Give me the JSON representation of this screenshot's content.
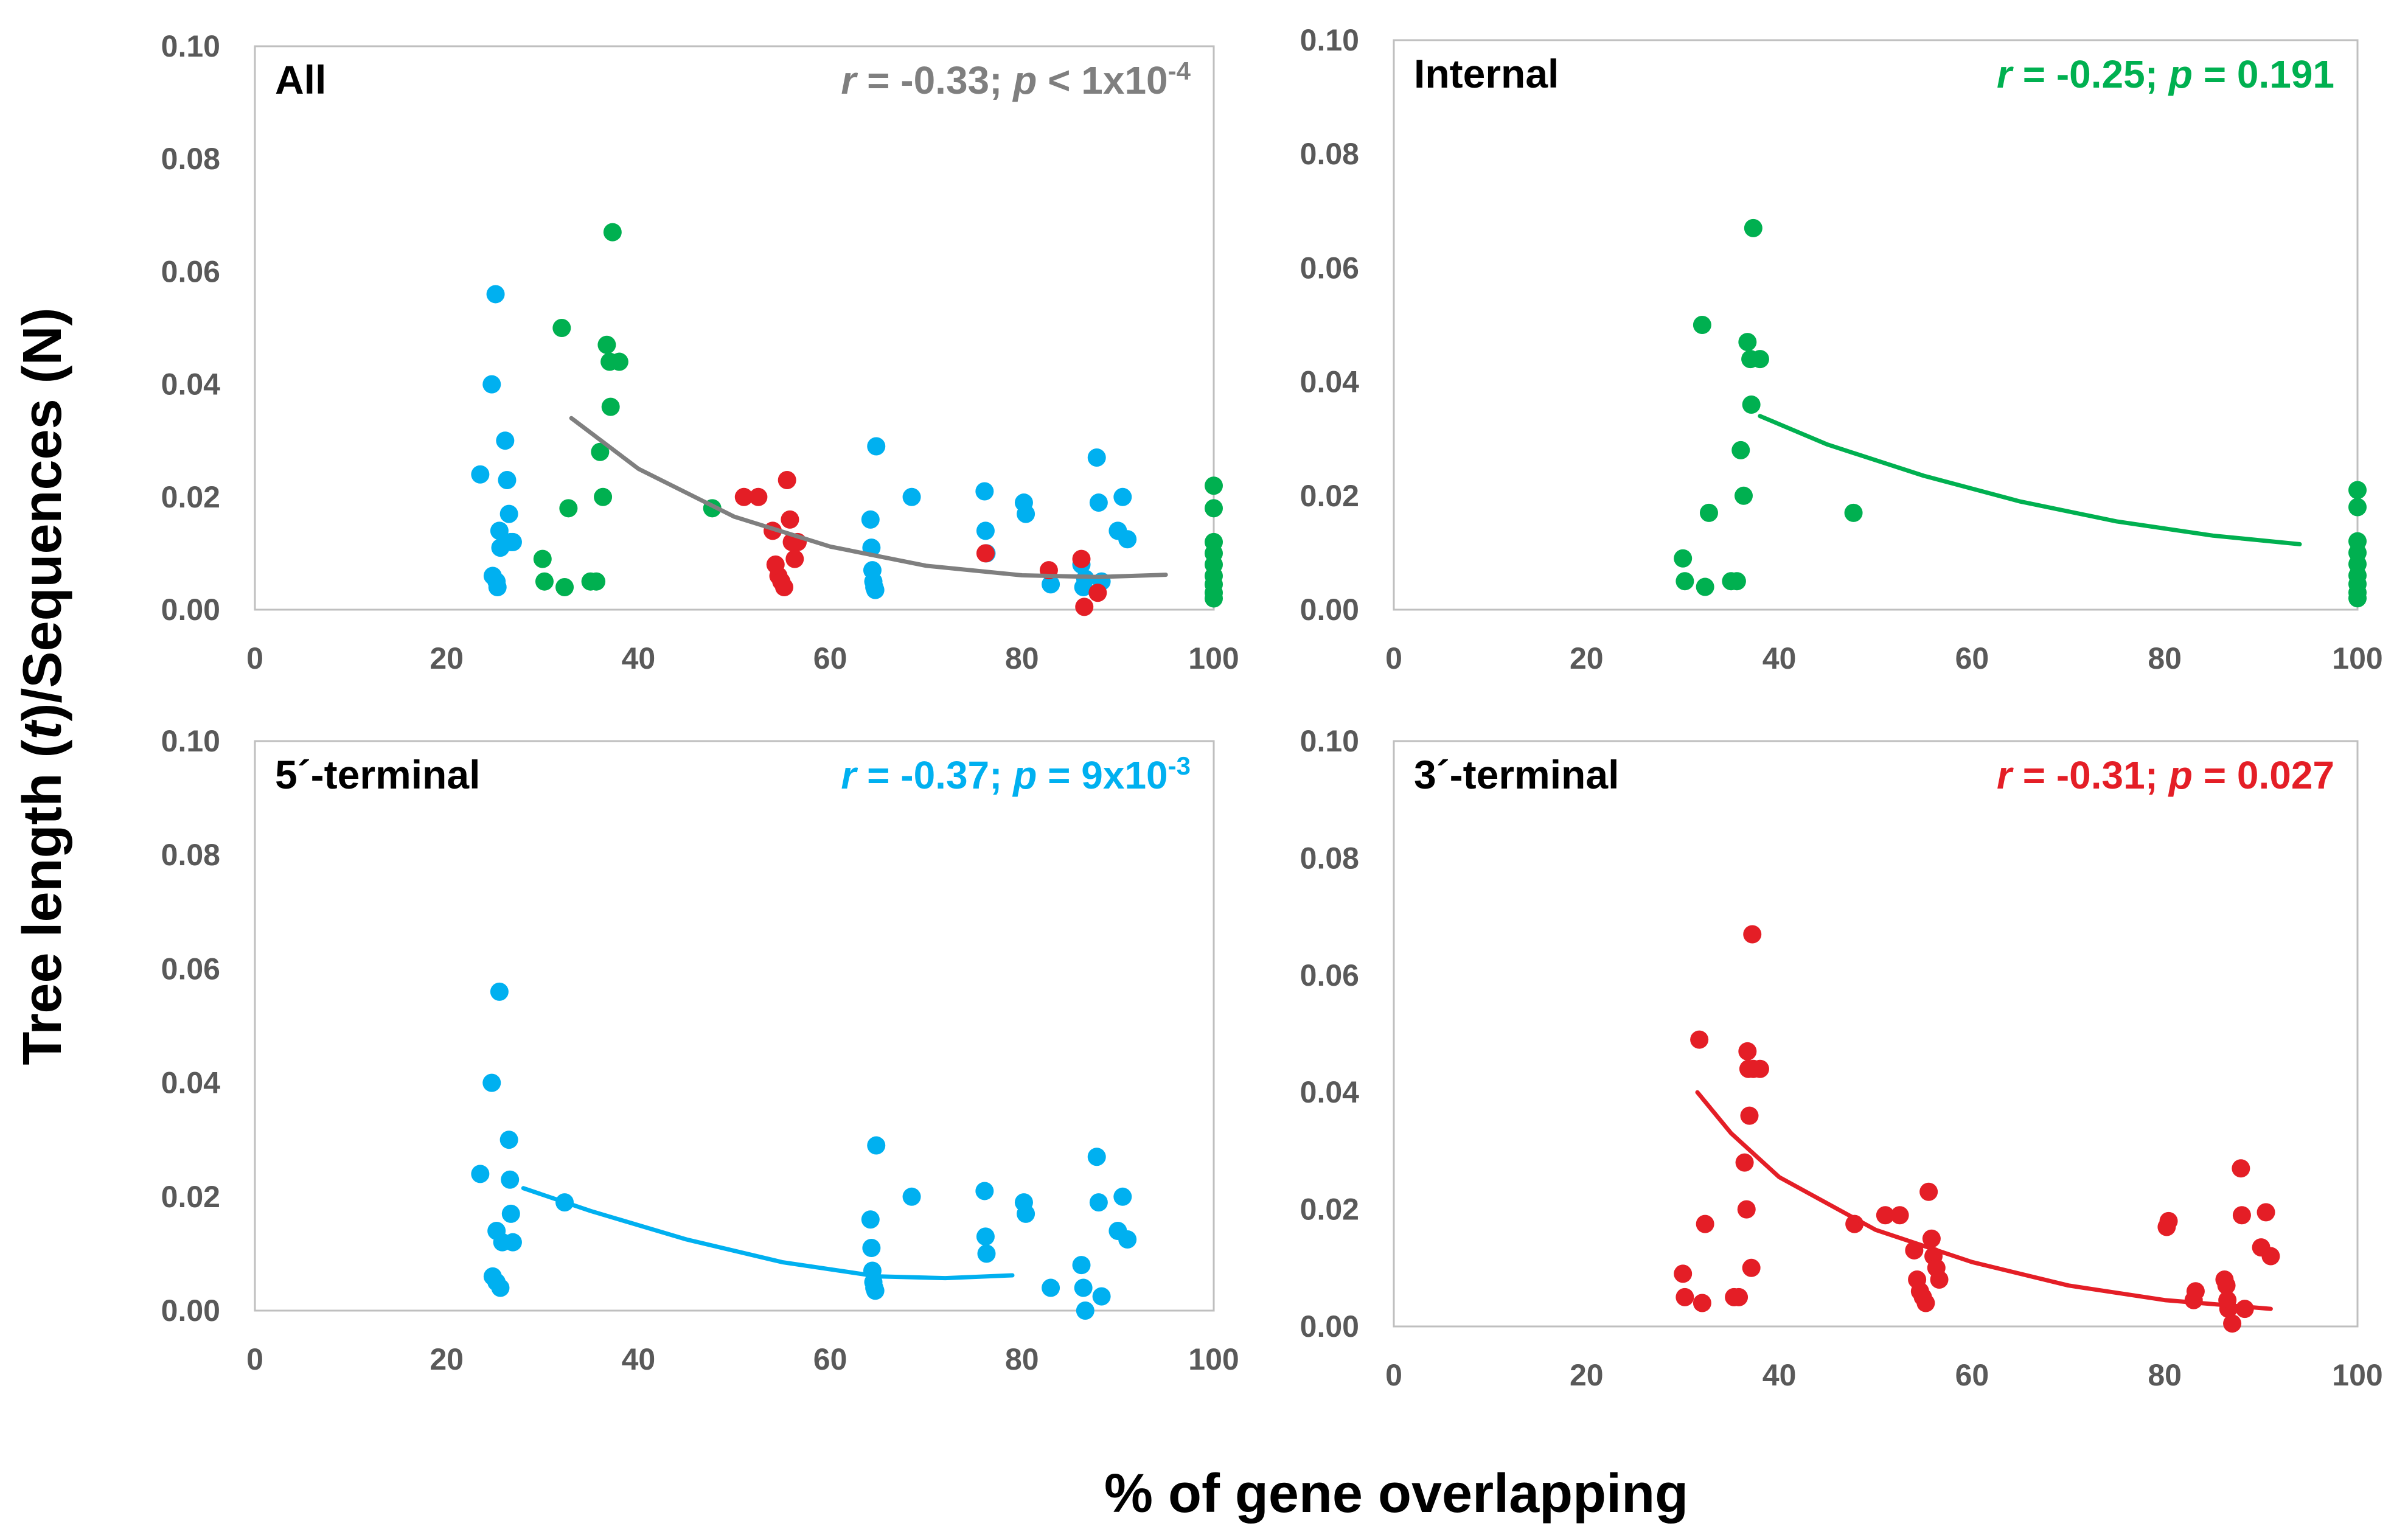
{
  "figure": {
    "ylabel_prefix": "Tree length (",
    "ylabel_italic": "t",
    "ylabel_suffix": ")/Sequences (N)",
    "xlabel": "% of gene overlapping"
  },
  "colors": {
    "all": "#7f7f7f",
    "internal": "#00b050",
    "five_prime": "#00b0f0",
    "three_prime": "#e41e26",
    "frame": "#bfbfbf",
    "tick_text": "#595959"
  },
  "chart_data": [
    {
      "type": "scatter",
      "title": "All",
      "stat": {
        "r_label": "r",
        "r_text": " = -0.33; ",
        "p_label": "p",
        "p_text": " < 1x10",
        "p_exp": "-4"
      },
      "stat_color": "#7f7f7f",
      "xlim": [
        0,
        100
      ],
      "ylim": [
        0,
        0.1
      ],
      "x_ticks": [
        "0",
        "20",
        "40",
        "60",
        "80",
        "100"
      ],
      "y_ticks": [
        "0.00",
        "0.02",
        "0.04",
        "0.06",
        "0.08",
        "0.10"
      ],
      "trend": {
        "color": "#7f7f7f",
        "x": [
          33,
          40,
          50,
          60,
          70,
          80,
          88,
          95
        ],
        "y": [
          0.034,
          0.025,
          0.0165,
          0.0112,
          0.0078,
          0.0061,
          0.0058,
          0.0062
        ]
      },
      "series": [
        {
          "name": "5'-terminal",
          "color": "#00b0f0",
          "x": [
            23.5,
            24.7,
            25.1,
            25.5,
            24.8,
            25.2,
            25.3,
            25.6,
            26.1,
            26.3,
            26.5,
            26.7,
            26.9,
            64.2,
            64.3,
            64.4,
            64.5,
            64.6,
            64.7,
            64.8,
            68.5,
            76.1,
            76.2,
            76.3,
            80.2,
            80.4,
            83.0,
            86.2,
            86.4,
            86.6,
            87.8,
            88.0,
            88.3,
            90.0,
            90.5,
            91.0
          ],
          "y": [
            0.024,
            0.04,
            0.056,
            0.014,
            0.006,
            0.005,
            0.004,
            0.011,
            0.03,
            0.023,
            0.017,
            0.012,
            0.012,
            0.016,
            0.011,
            0.007,
            0.005,
            0.004,
            0.0035,
            0.029,
            0.02,
            0.021,
            0.014,
            0.01,
            0.019,
            0.017,
            0.0045,
            0.008,
            0.004,
            0.0055,
            0.027,
            0.019,
            0.005,
            0.014,
            0.02,
            0.0125
          ]
        },
        {
          "name": "Internal",
          "color": "#00b050",
          "x": [
            30.0,
            30.2,
            32.0,
            32.3,
            32.7,
            35.0,
            35.6,
            36.0,
            36.3,
            36.7,
            37.0,
            37.1,
            37.3,
            38.0,
            47.7,
            100,
            100,
            100,
            100,
            100,
            100,
            100,
            100,
            100
          ],
          "y": [
            0.009,
            0.005,
            0.05,
            0.004,
            0.018,
            0.005,
            0.005,
            0.028,
            0.02,
            0.047,
            0.044,
            0.036,
            0.067,
            0.044,
            0.018,
            0.022,
            0.018,
            0.012,
            0.01,
            0.008,
            0.006,
            0.0045,
            0.003,
            0.002
          ]
        },
        {
          "name": "3'-terminal",
          "color": "#e41e26",
          "x": [
            51.0,
            52.5,
            54.0,
            54.3,
            54.6,
            54.9,
            55.2,
            55.5,
            55.8,
            56.0,
            56.3,
            56.6,
            76.2,
            82.8,
            86.2,
            86.5,
            87.9
          ],
          "y": [
            0.02,
            0.02,
            0.014,
            0.008,
            0.006,
            0.005,
            0.004,
            0.023,
            0.016,
            0.012,
            0.009,
            0.012,
            0.01,
            0.007,
            0.009,
            0.0005,
            0.003
          ]
        }
      ]
    },
    {
      "type": "scatter",
      "title": "Internal",
      "stat": {
        "r_label": "r",
        "r_text": " = -0.25; ",
        "p_label": "p",
        "p_text": " = 0.191",
        "p_exp": ""
      },
      "stat_color": "#00b050",
      "xlim": [
        0,
        100
      ],
      "ylim": [
        0,
        0.1
      ],
      "x_ticks": [
        "0",
        "20",
        "40",
        "60",
        "80",
        "100"
      ],
      "y_ticks": [
        "0.00",
        "0.02",
        "0.04",
        "0.06",
        "0.08",
        "0.10"
      ],
      "trend": {
        "color": "#00b050",
        "x": [
          38,
          45,
          55,
          65,
          75,
          85,
          94
        ],
        "y": [
          0.034,
          0.029,
          0.0235,
          0.019,
          0.0155,
          0.013,
          0.0115
        ]
      },
      "series": [
        {
          "name": "Internal",
          "color": "#00b050",
          "x": [
            30.0,
            30.2,
            32.0,
            32.3,
            32.7,
            35.0,
            35.6,
            36.0,
            36.3,
            36.7,
            37.0,
            37.1,
            37.3,
            38.0,
            47.7,
            100,
            100,
            100,
            100,
            100,
            100,
            100,
            100,
            100
          ],
          "y": [
            0.009,
            0.005,
            0.05,
            0.004,
            0.017,
            0.005,
            0.005,
            0.028,
            0.02,
            0.047,
            0.044,
            0.036,
            0.067,
            0.044,
            0.017,
            0.021,
            0.018,
            0.012,
            0.01,
            0.008,
            0.006,
            0.0045,
            0.003,
            0.002
          ]
        }
      ]
    },
    {
      "type": "scatter",
      "title": "5´-terminal",
      "stat": {
        "r_label": "r",
        "r_text": " = -0.37; ",
        "p_label": "p",
        "p_text": " = 9x10",
        "p_exp": "-3"
      },
      "stat_color": "#00b0f0",
      "xlim": [
        0,
        100
      ],
      "ylim": [
        0,
        0.1
      ],
      "x_ticks": [
        "0",
        "20",
        "40",
        "60",
        "80",
        "100"
      ],
      "y_ticks": [
        "0.00",
        "0.02",
        "0.04",
        "0.06",
        "0.08",
        "0.10"
      ],
      "trend": {
        "color": "#00b0f0",
        "x": [
          28,
          35,
          45,
          55,
          65,
          72,
          79
        ],
        "y": [
          0.0215,
          0.0175,
          0.0125,
          0.0085,
          0.006,
          0.0057,
          0.0062
        ]
      },
      "series": [
        {
          "name": "5'-terminal",
          "color": "#00b0f0",
          "x": [
            23.5,
            24.7,
            25.5,
            25.2,
            24.8,
            25.2,
            25.6,
            25.8,
            26.5,
            26.6,
            26.7,
            26.9,
            32.3,
            64.2,
            64.3,
            64.4,
            64.5,
            64.6,
            64.7,
            64.8,
            68.5,
            76.1,
            76.2,
            76.3,
            80.2,
            80.4,
            83.0,
            86.2,
            86.4,
            86.6,
            87.8,
            88.0,
            88.3,
            90.0,
            90.5,
            91.0
          ],
          "y": [
            0.024,
            0.04,
            0.056,
            0.014,
            0.006,
            0.005,
            0.004,
            0.012,
            0.03,
            0.023,
            0.017,
            0.012,
            0.019,
            0.016,
            0.011,
            0.007,
            0.005,
            0.004,
            0.0035,
            0.029,
            0.02,
            0.021,
            0.013,
            0.01,
            0.019,
            0.017,
            0.004,
            0.008,
            0.004,
            0.0,
            0.027,
            0.019,
            0.0025,
            0.014,
            0.02,
            0.0125
          ]
        }
      ]
    },
    {
      "type": "scatter",
      "title": "3´-terminal",
      "stat": {
        "r_label": "r",
        "r_text": " = -0.31; ",
        "p_label": "p",
        "p_text": " = 0.027",
        "p_exp": ""
      },
      "stat_color": "#e41e26",
      "xlim": [
        0,
        100
      ],
      "ylim": [
        0,
        0.1
      ],
      "x_ticks": [
        "0",
        "20",
        "40",
        "60",
        "80",
        "100"
      ],
      "y_ticks": [
        "0.00",
        "0.02",
        "0.04",
        "0.06",
        "0.08",
        "0.10"
      ],
      "trend": {
        "color": "#e41e26",
        "x": [
          31.5,
          35,
          40,
          50,
          60,
          70,
          80,
          91
        ],
        "y": [
          0.04,
          0.033,
          0.0255,
          0.0165,
          0.011,
          0.007,
          0.0045,
          0.003
        ]
      },
      "series": [
        {
          "name": "3'-terminal",
          "color": "#e41e26",
          "x": [
            30.0,
            30.2,
            31.7,
            32.0,
            32.3,
            35.3,
            35.8,
            36.4,
            36.6,
            36.7,
            36.8,
            36.9,
            37.1,
            37.2,
            37.3,
            38.0,
            47.8,
            51.0,
            52.5,
            54.0,
            54.3,
            54.6,
            54.9,
            55.2,
            55.5,
            55.8,
            56.0,
            56.3,
            56.6,
            80.2,
            80.4,
            83.0,
            83.2,
            86.2,
            86.4,
            86.5,
            86.6,
            87.0,
            87.9,
            88.0,
            88.3,
            90.0,
            90.5,
            91.0
          ],
          "y": [
            0.009,
            0.005,
            0.049,
            0.004,
            0.0175,
            0.005,
            0.005,
            0.028,
            0.02,
            0.047,
            0.044,
            0.036,
            0.01,
            0.067,
            0.044,
            0.044,
            0.0175,
            0.019,
            0.019,
            0.013,
            0.008,
            0.006,
            0.005,
            0.004,
            0.023,
            0.015,
            0.012,
            0.01,
            0.008,
            0.017,
            0.018,
            0.0045,
            0.006,
            0.008,
            0.007,
            0.0045,
            0.003,
            0.0005,
            0.027,
            0.019,
            0.003,
            0.0135,
            0.0195,
            0.012
          ]
        }
      ]
    }
  ]
}
